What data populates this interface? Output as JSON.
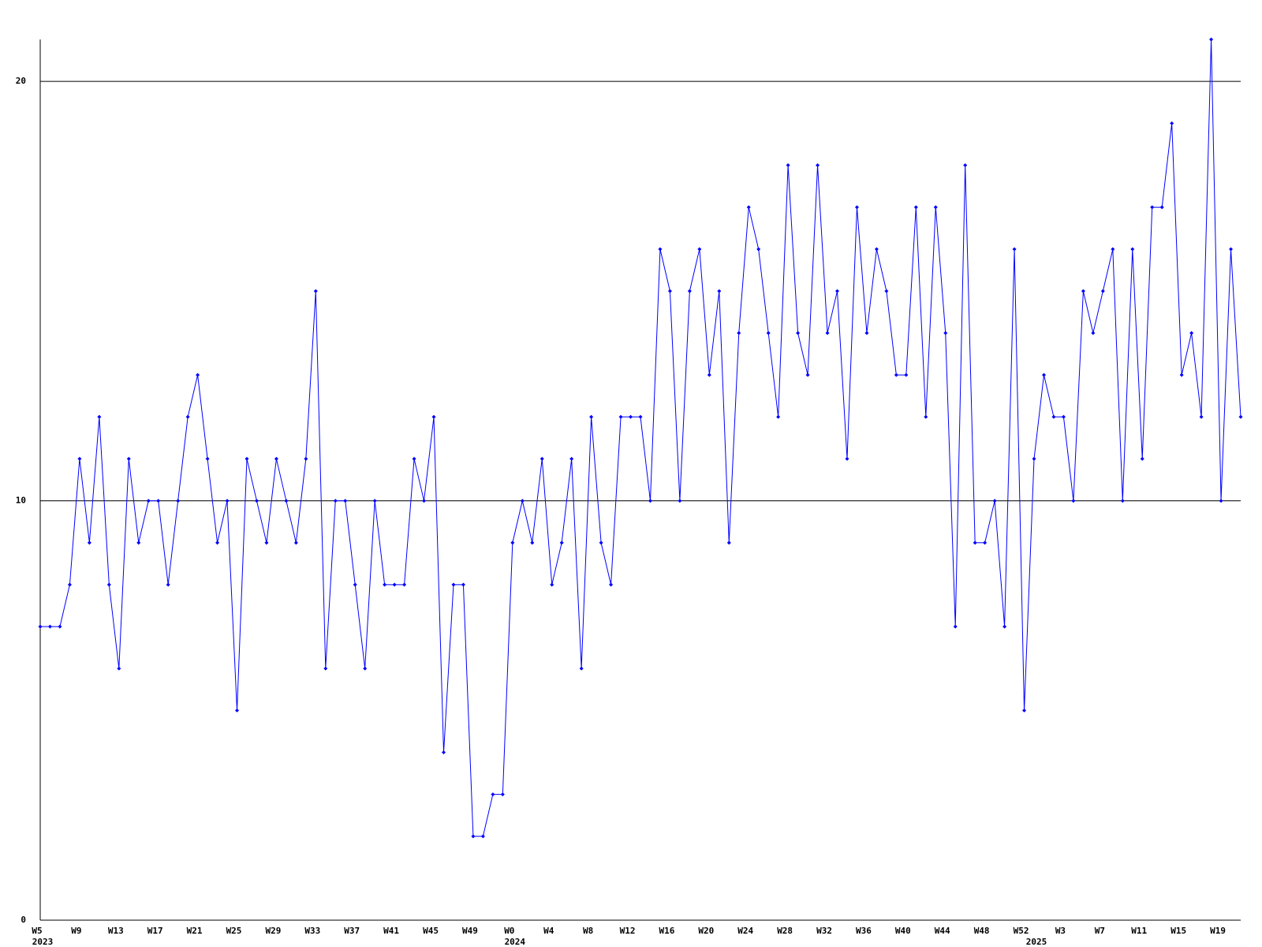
{
  "chart_data": {
    "type": "line",
    "categories": [
      "W5",
      null,
      null,
      null,
      "W9",
      null,
      null,
      null,
      "W13",
      null,
      null,
      null,
      "W17",
      null,
      null,
      null,
      "W21",
      null,
      null,
      null,
      "W25",
      null,
      null,
      null,
      "W29",
      null,
      null,
      null,
      "W33",
      null,
      null,
      null,
      "W37",
      null,
      null,
      null,
      "W41",
      null,
      null,
      null,
      "W45",
      null,
      null,
      null,
      "W49",
      null,
      null,
      null,
      "W0",
      null,
      null,
      null,
      "W4",
      null,
      null,
      null,
      "W8",
      null,
      null,
      null,
      "W12",
      null,
      null,
      null,
      "W16",
      null,
      null,
      null,
      "W20",
      null,
      null,
      null,
      "W24",
      null,
      null,
      null,
      "W28",
      null,
      null,
      null,
      "W32",
      null,
      null,
      null,
      "W36",
      null,
      null,
      null,
      "W40",
      null,
      null,
      null,
      "W44",
      null,
      null,
      null,
      "W48",
      null,
      null,
      null,
      "W52",
      null,
      null,
      null,
      "W3",
      null,
      null,
      null,
      "W7",
      null,
      null,
      null,
      "W11",
      null,
      null,
      null,
      "W15",
      null,
      null,
      null,
      "W19",
      null,
      null
    ],
    "category_years": [
      "2023",
      null,
      null,
      null,
      null,
      null,
      null,
      null,
      null,
      null,
      null,
      null,
      null,
      null,
      null,
      null,
      null,
      null,
      null,
      null,
      null,
      null,
      null,
      null,
      null,
      null,
      null,
      null,
      null,
      null,
      null,
      null,
      null,
      null,
      null,
      null,
      null,
      null,
      null,
      null,
      null,
      null,
      null,
      null,
      null,
      null,
      null,
      null,
      "2024",
      null,
      null,
      null,
      null,
      null,
      null,
      null,
      null,
      null,
      null,
      null,
      null,
      null,
      null,
      null,
      null,
      null,
      null,
      null,
      null,
      null,
      null,
      null,
      null,
      null,
      null,
      null,
      null,
      null,
      null,
      null,
      null,
      null,
      null,
      null,
      null,
      null,
      null,
      null,
      null,
      null,
      null,
      null,
      null,
      null,
      null,
      null,
      null,
      null,
      null,
      null,
      null,
      "2025",
      null,
      null,
      null,
      null,
      null,
      null,
      null,
      null,
      null,
      null,
      null,
      null,
      null,
      null,
      null,
      null,
      null,
      null,
      null,
      null,
      null
    ],
    "values": [
      7,
      7,
      7,
      8,
      11,
      9,
      12,
      8,
      6,
      11,
      9,
      10,
      10,
      8,
      10,
      12,
      13,
      11,
      9,
      10,
      5,
      11,
      10,
      9,
      11,
      10,
      9,
      11,
      15,
      6,
      10,
      10,
      8,
      6,
      10,
      8,
      8,
      8,
      11,
      10,
      12,
      4,
      8,
      8,
      2,
      2,
      3,
      3,
      9,
      10,
      9,
      11,
      8,
      9,
      11,
      6,
      12,
      9,
      8,
      12,
      12,
      12,
      10,
      16,
      15,
      10,
      15,
      16,
      13,
      15,
      9,
      14,
      17,
      16,
      14,
      12,
      18,
      14,
      13,
      18,
      14,
      15,
      11,
      17,
      14,
      16,
      15,
      13,
      13,
      17,
      12,
      17,
      14,
      7,
      18,
      9,
      9,
      10,
      7,
      16,
      5,
      11,
      13,
      12,
      12,
      10,
      15,
      14,
      15,
      16,
      10,
      16,
      11,
      17,
      17,
      19,
      13,
      14,
      12,
      21,
      10,
      16,
      12
    ],
    "color": "#0000ff",
    "ylim": [
      0,
      21
    ],
    "yticks": [
      0,
      10,
      20
    ],
    "grid": true
  }
}
